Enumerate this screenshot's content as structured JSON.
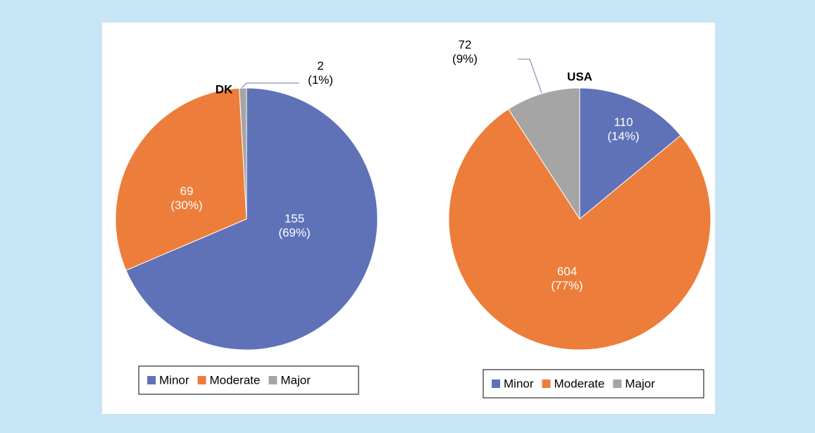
{
  "chart_data": [
    {
      "type": "pie",
      "title": "DK",
      "categories": [
        "Minor",
        "Moderate",
        "Major"
      ],
      "values": [
        155,
        69,
        2
      ],
      "value_labels": [
        "155 (69%)",
        "69 (30%)",
        "2 (1%)"
      ],
      "colors": [
        "#5f72b8",
        "#ed7d3a",
        "#a5a5a5"
      ]
    },
    {
      "type": "pie",
      "title": "USA",
      "categories": [
        "Minor",
        "Moderate",
        "Major"
      ],
      "values": [
        110,
        604,
        72
      ],
      "value_labels": [
        "110 (14%)",
        "604 (77%)",
        "72 (9%)"
      ],
      "colors": [
        "#5f72b8",
        "#ed7d3a",
        "#a5a5a5"
      ]
    }
  ]
}
